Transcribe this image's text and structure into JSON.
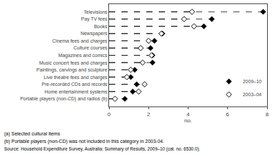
{
  "chart_data": {
    "type": "dot",
    "orientation": "horizontal",
    "categories": [
      "Televisions",
      "Pay TV fees",
      "Books",
      "Newspapers",
      "Cinema fees and charges",
      "Culture courses",
      "Magazines and comics",
      "Music concert fees and charges",
      "Paintings, carvings and sculpture",
      "Live theatre fees and charges",
      "Pre-recorded CDs and records",
      "Home entertainment systems",
      "Portable players (non-CD) and radios (b)"
    ],
    "series": [
      {
        "name": "2009–10",
        "color": "black",
        "marker": "diamond",
        "values": [
          7.8,
          5.2,
          4.8,
          2.7,
          2.3,
          2.1,
          2.2,
          2.2,
          1.3,
          1.1,
          1.4,
          1.2,
          0.8
        ]
      },
      {
        "name": "2003–04",
        "color": "black",
        "marker": "diamond-open",
        "values": [
          4.2,
          3.8,
          4.3,
          2.65,
          2.0,
          1.6,
          2.15,
          1.7,
          1.1,
          0.9,
          1.8,
          1.5,
          0.3
        ]
      }
    ],
    "xlabel": "no.",
    "xlim": [
      0,
      8
    ],
    "xticks": [
      0,
      2,
      4,
      6,
      8
    ],
    "line_style": "dashed",
    "legend": "lower right",
    "grid": false,
    "annotations": [
      "(a) Selected cultural items",
      "(b) Portable players (non-CD) was not included in this category in 2003-04.",
      "Source: Household Expenditure Survey, Australia: Summary of Results, 2009–10 (cat. no. 6530.0)."
    ]
  }
}
